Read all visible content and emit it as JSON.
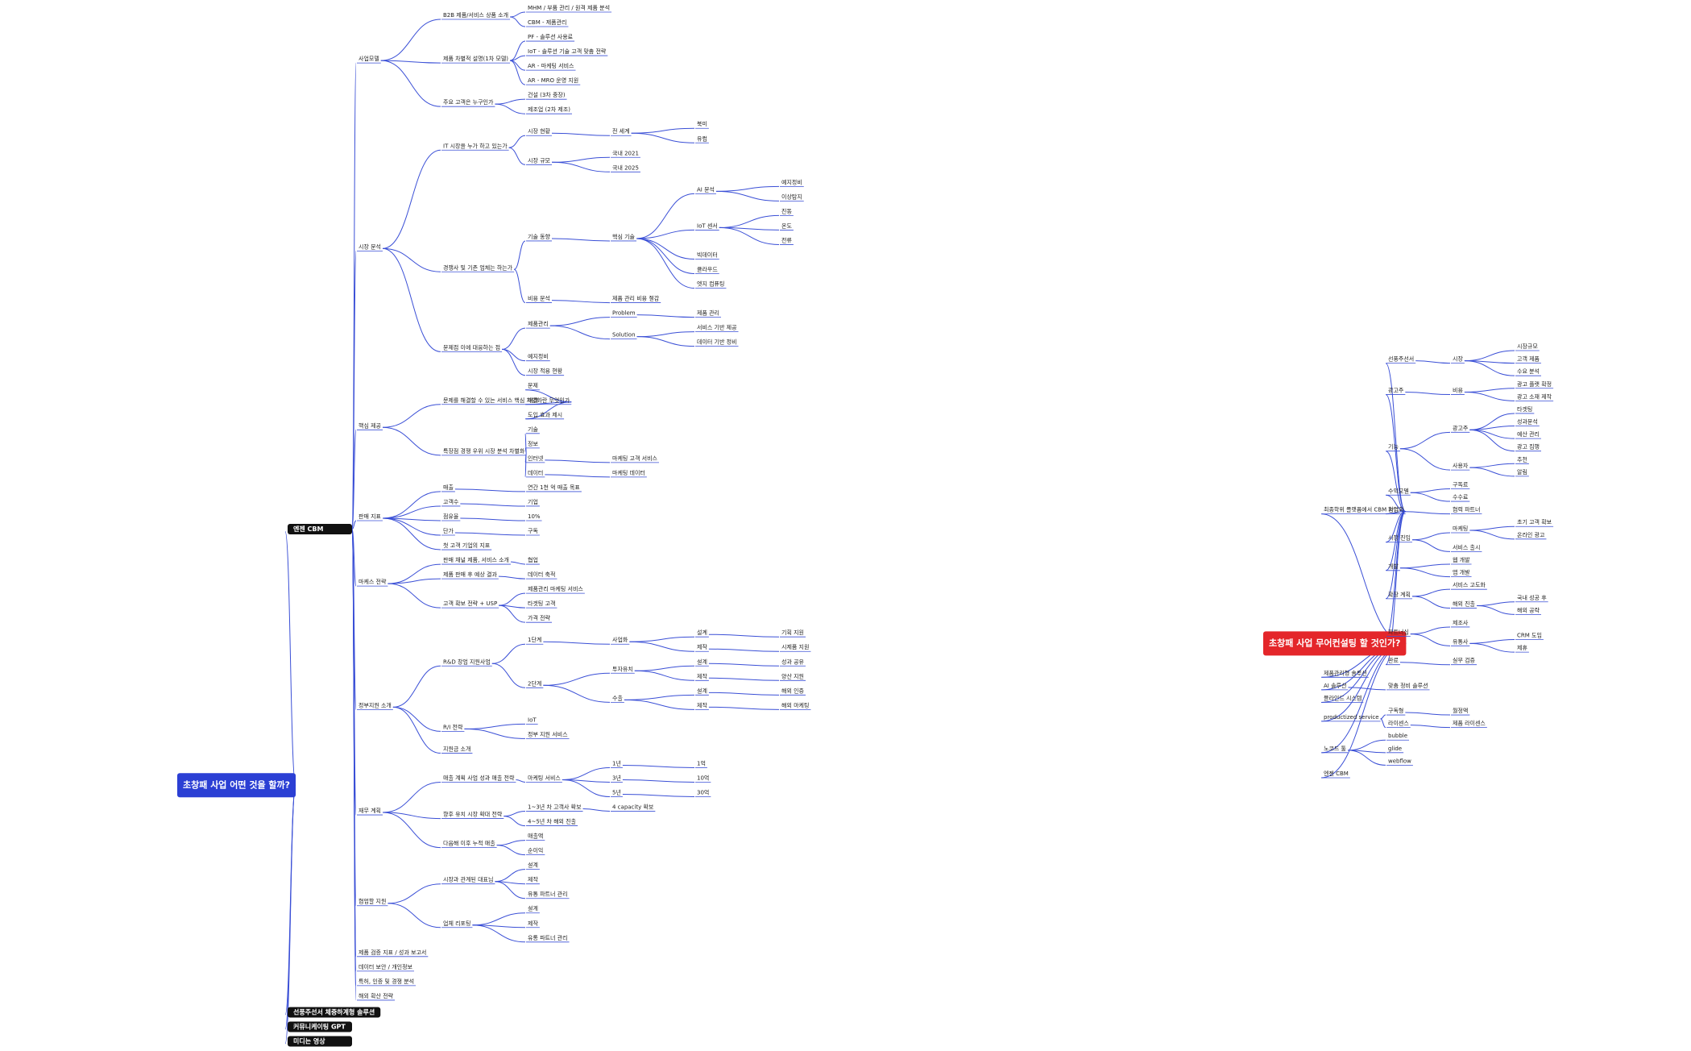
{
  "left_tree": {
    "label": "초창패 사업 어떤 것을 할까?",
    "children": [
      {
        "label": "엔젠 CBM",
        "children": [
          {
            "label": "사업모델",
            "children": [
              {
                "label": "B2B 제품/서비스 상품 소개",
                "children": [
                  {
                    "label": "MHM / 부품 관리 / 원격 제품 분석"
                  },
                  {
                    "label": "CBM - 제품관리"
                  }
                ]
              },
              {
                "label": "제품 차별적 설명(1차 모델)",
                "children": [
                  {
                    "label": "PF - 솔루션 사용료"
                  },
                  {
                    "label": "IoT - 솔루션 기술 고객 맞춤 전략"
                  },
                  {
                    "label": "AR - 마케팅 서비스"
                  },
                  {
                    "label": "AR - MRO 운영 지원"
                  }
                ]
              },
              {
                "label": "주요 고객은 누구인가",
                "children": [
                  {
                    "label": "건설 (3차 중장)"
                  },
                  {
                    "label": "제조업 (2차 제조)"
                  }
                ]
              }
            ]
          },
          {
            "label": "시장 분석",
            "children": [
              {
                "label": "IT 시장을 누가 하고 있는가",
                "children": [
                  {
                    "label": "시장 현황",
                    "children": [
                      {
                        "label": "전 세계",
                        "children": [
                          {
                            "label": "북미"
                          },
                          {
                            "label": "유럽"
                          }
                        ]
                      }
                    ]
                  },
                  {
                    "label": "시장 규모",
                    "children": [
                      {
                        "label": "국내 2021"
                      },
                      {
                        "label": "국내 2025"
                      }
                    ]
                  }
                ]
              },
              {
                "label": "경쟁사 및 기존 업체는 하는가",
                "children": [
                  {
                    "label": "기술 동향",
                    "children": [
                      {
                        "label": "핵심 기술",
                        "children": [
                          {
                            "label": "AI 분석",
                            "children": [
                              {
                                "label": "예지정비"
                              },
                              {
                                "label": "이상탐지"
                              }
                            ]
                          },
                          {
                            "label": "IoT 센서",
                            "children": [
                              {
                                "label": "진동"
                              },
                              {
                                "label": "온도"
                              },
                              {
                                "label": "전류"
                              }
                            ]
                          },
                          {
                            "label": "빅데이터"
                          },
                          {
                            "label": "클라우드"
                          },
                          {
                            "label": "엣지 컴퓨팅"
                          }
                        ]
                      }
                    ]
                  },
                  {
                    "label": "비용 분석",
                    "children": [
                      {
                        "label": "제품 관리 비용 절감"
                      }
                    ]
                  }
                ]
              },
              {
                "label": "문제점 이에 대응하는 점",
                "children": [
                  {
                    "label": "제품관리",
                    "children": [
                      {
                        "label": "Problem",
                        "children": [
                          {
                            "label": "제품 관리"
                          }
                        ]
                      },
                      {
                        "label": "Solution",
                        "children": [
                          {
                            "label": "서비스 기반 제공"
                          },
                          {
                            "label": "데이터 기반 정비"
                          }
                        ]
                      }
                    ]
                  },
                  {
                    "label": "예지정비"
                  },
                  {
                    "label": "시장 적용 현황"
                  }
                ]
              }
            ]
          },
          {
            "label": "핵심 제공",
            "children": [
              {
                "label": "문제를 해결할 수 있는 서비스 핵심 차별화란 무엇인가",
                "children": [
                  {
                    "label": "문제"
                  },
                  {
                    "label": "해결"
                  },
                  {
                    "label": "도입 효과 제시"
                  }
                ]
              },
              {
                "label": "특장점 경쟁 우위 시장 분석 차별화",
                "children": [
                  {
                    "label": "기술"
                  },
                  {
                    "label": "정보"
                  },
                  {
                    "label": "인터넷",
                    "children": [
                      {
                        "label": "마케팅 고객 서비스"
                      }
                    ]
                  },
                  {
                    "label": "데이터",
                    "children": [
                      {
                        "label": "마케팅 데이터"
                      }
                    ]
                  }
                ]
              }
            ]
          },
          {
            "label": "판매 지표",
            "children": [
              {
                "label": "매출",
                "children": [
                  {
                    "label": "연간 1천 억 매출 목표"
                  }
                ]
              },
              {
                "label": "고객수",
                "children": [
                  {
                    "label": "기업"
                  }
                ]
              },
              {
                "label": "점유율",
                "children": [
                  {
                    "label": "10%"
                  }
                ]
              },
              {
                "label": "단가",
                "children": [
                  {
                    "label": "구독"
                  }
                ]
              },
              {
                "label": "첫 고객 기업의 지표"
              }
            ]
          },
          {
            "label": "마케스 전략",
            "children": [
              {
                "label": "판매 채널 제품, 서비스 소개",
                "children": [
                  {
                    "label": "협업"
                  }
                ]
              },
              {
                "label": "제품 판매 후 예상 결과",
                "children": [
                  {
                    "label": "데이터 축적"
                  }
                ]
              },
              {
                "label": "고객 확보 전략 + USP",
                "children": [
                  {
                    "label": "제품관리 마케팅 서비스"
                  },
                  {
                    "label": "타겟팅 고객"
                  },
                  {
                    "label": "가격 전략"
                  }
                ]
              }
            ]
          },
          {
            "label": "정부지원 소개",
            "children": [
              {
                "label": "R&D 창업 지원사업",
                "children": [
                  {
                    "label": "1단계",
                    "children": [
                      {
                        "label": "사업화",
                        "children": [
                          {
                            "label": "설계",
                            "children": [
                              {
                                "label": "기획 지원"
                              }
                            ]
                          },
                          {
                            "label": "제작",
                            "children": [
                              {
                                "label": "시제품 지원"
                              }
                            ]
                          }
                        ]
                      }
                    ]
                  },
                  {
                    "label": "2단계",
                    "children": [
                      {
                        "label": "투자유치",
                        "children": [
                          {
                            "label": "설계",
                            "children": [
                              {
                                "label": "성과 공유"
                              }
                            ]
                          },
                          {
                            "label": "제작",
                            "children": [
                              {
                                "label": "양산 지원"
                              }
                            ]
                          }
                        ]
                      },
                      {
                        "label": "수출",
                        "children": [
                          {
                            "label": "설계",
                            "children": [
                              {
                                "label": "해외 인증"
                              }
                            ]
                          },
                          {
                            "label": "제작",
                            "children": [
                              {
                                "label": "해외 마케팅"
                              }
                            ]
                          }
                        ]
                      }
                    ]
                  }
                ]
              },
              {
                "label": "R/I 전략",
                "children": [
                  {
                    "label": "IoT"
                  },
                  {
                    "label": "정부 지원 서비스"
                  }
                ]
              },
              {
                "label": "지원금 소개"
              }
            ]
          },
          {
            "label": "재무 계획",
            "children": [
              {
                "label": "매출 계획 사업 성과 매출 전략",
                "children": [
                  {
                    "label": "마케팅 서비스",
                    "children": [
                      {
                        "label": "1년",
                        "children": [
                          {
                            "label": "1억"
                          }
                        ]
                      },
                      {
                        "label": "3년",
                        "children": [
                          {
                            "label": "10억"
                          }
                        ]
                      },
                      {
                        "label": "5년",
                        "children": [
                          {
                            "label": "30억"
                          }
                        ]
                      }
                    ]
                  }
                ]
              },
              {
                "label": "향후 유치 시장 확대 전략",
                "children": [
                  {
                    "label": "1~3년 차 고객사 확보",
                    "children": [
                      {
                        "label": "4 capacity 확보"
                      }
                    ]
                  },
                  {
                    "label": "4~5년 차 해외 진출"
                  }
                ]
              },
              {
                "label": "다음해 이후 누적 매출",
                "children": [
                  {
                    "label": "매출액"
                  },
                  {
                    "label": "순이익"
                  }
                ]
              }
            ]
          },
          {
            "label": "협업할 지원",
            "children": [
              {
                "label": "시장과 관계된 대표님",
                "children": [
                  {
                    "label": "설계"
                  },
                  {
                    "label": "제작"
                  },
                  {
                    "label": "유통 파트너 관리"
                  }
                ]
              },
              {
                "label": "업체 리포팅",
                "children": [
                  {
                    "label": "설계"
                  },
                  {
                    "label": "제작"
                  },
                  {
                    "label": "유통 파트너 관리"
                  }
                ]
              }
            ]
          },
          {
            "label": "제품 검증 지표 / 성과 보고서"
          },
          {
            "label": "데이터 보안 / 개인정보"
          },
          {
            "label": "특허, 인증 및 경쟁 분석"
          },
          {
            "label": "해외 확산 전략"
          }
        ]
      },
      {
        "label": "선풍주선서 체증하계형 솔루션"
      },
      {
        "label": "커뮤니케이팅 GPT"
      },
      {
        "label": "미디는 영상"
      }
    ]
  },
  "right_tree": {
    "label": "초창패 사업 무어컨설팅 할 것인가?",
    "children": [
      {
        "label": "최종학위 플랫폼에서 CBM 사업화",
        "children": [
          {
            "label": "선풍주선서",
            "children": [
              {
                "label": "시장",
                "children": [
                  {
                    "label": "시장규모"
                  },
                  {
                    "label": "고객 제품"
                  },
                  {
                    "label": "수요 분석"
                  }
                ]
              }
            ]
          },
          {
            "label": "광고주",
            "children": [
              {
                "label": "비용",
                "children": [
                  {
                    "label": "광고 플랫 확정"
                  },
                  {
                    "label": "광고 소재 제작"
                  }
                ]
              }
            ]
          },
          {
            "label": "기능",
            "children": [
              {
                "label": "광고주",
                "children": [
                  {
                    "label": "타겟팅"
                  },
                  {
                    "label": "성과분석"
                  },
                  {
                    "label": "예산 관리"
                  },
                  {
                    "label": "광고 집행"
                  }
                ]
              },
              {
                "label": "사용자",
                "children": [
                  {
                    "label": "추천"
                  },
                  {
                    "label": "알림"
                  }
                ]
              }
            ]
          },
          {
            "label": "수익모델",
            "children": [
              {
                "label": "구독료"
              },
              {
                "label": "수수료"
              }
            ]
          },
          {
            "label": "협업",
            "children": [
              {
                "label": "협력 파트너"
              }
            ]
          },
          {
            "label": "시장 진입",
            "children": [
              {
                "label": "마케팅",
                "children": [
                  {
                    "label": "초기 고객 확보"
                  },
                  {
                    "label": "온라인 광고"
                  }
                ]
              },
              {
                "label": "서비스 출시"
              }
            ]
          },
          {
            "label": "개발",
            "children": [
              {
                "label": "웹 개발"
              },
              {
                "label": "앱 개발"
              }
            ]
          },
          {
            "label": "확장 계획",
            "children": [
              {
                "label": "서비스 고도화"
              },
              {
                "label": "해외 진출",
                "children": [
                  {
                    "label": "국내 성공 후"
                  },
                  {
                    "label": "해외 공략"
                  }
                ]
              }
            ]
          },
          {
            "label": "파트너십",
            "children": [
              {
                "label": "제조사"
              },
              {
                "label": "유통사",
                "children": [
                  {
                    "label": "CRM 도입"
                  },
                  {
                    "label": "제휴"
                  }
                ]
              }
            ]
          },
          {
            "label": "완료",
            "children": [
              {
                "label": "실무 검증"
              }
            ]
          }
        ]
      },
      {
        "label": "제품관리형 솔루션"
      },
      {
        "label": "AI 솔루션",
        "children": [
          {
            "label": "맞춤 정비 솔루션"
          }
        ]
      },
      {
        "label": "블라인드 시스템"
      },
      {
        "label": "productized service",
        "children": [
          {
            "label": "구독형",
            "children": [
              {
                "label": "월정액"
              }
            ]
          },
          {
            "label": "라이센스",
            "children": [
              {
                "label": "제품 라이센스"
              }
            ]
          }
        ]
      },
      {
        "label": "노코드 툴",
        "children": [
          {
            "label": "bubble"
          },
          {
            "label": "glide"
          },
          {
            "label": "webflow"
          }
        ]
      },
      {
        "label": "엔젠 CBM"
      }
    ]
  }
}
